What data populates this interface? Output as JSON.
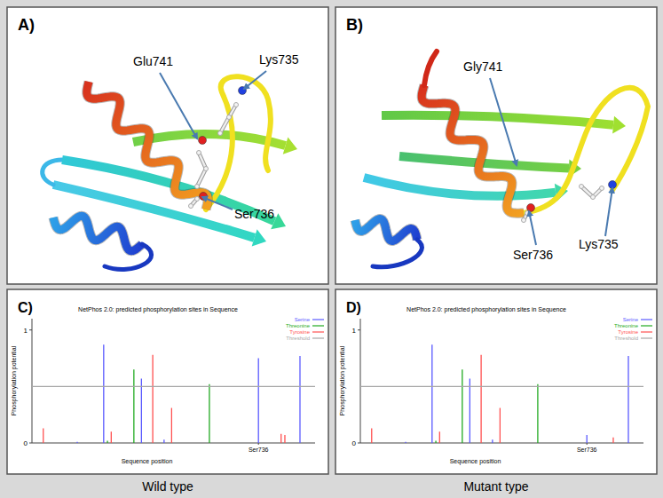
{
  "panels": [
    {
      "label": "A)",
      "residues": [
        "Glu741",
        "Lys735",
        "Ser736"
      ]
    },
    {
      "label": "B)",
      "residues": [
        "Gly741",
        "Ser736",
        "Lys735"
      ]
    }
  ],
  "chart_data": [
    {
      "type": "bar",
      "panel_label": "C)",
      "caption": "Wild type",
      "title": "NetPhos 2.0: predicted phosphorylation sites in Sequence",
      "x_label": "Sequence position",
      "y_label": "Phosphorylation potential",
      "xlim": [
        676,
        751
      ],
      "xticks": [
        {
          "value": 736,
          "label": "Ser736"
        }
      ],
      "ylim": [
        0,
        1.1
      ],
      "yticks": [
        0,
        1
      ],
      "legend": "upper right",
      "series": [
        {
          "name": "Serine",
          "color": "#5a5aff",
          "x": [
            688,
            695,
            705,
            711,
            736,
            747
          ],
          "values": [
            0.01,
            0.87,
            0.57,
            0.03,
            0.75,
            0.77
          ]
        },
        {
          "name": "Threonine",
          "color": "#22aa22",
          "x": [
            696,
            703,
            723
          ],
          "values": [
            0.02,
            0.65,
            0.52
          ]
        },
        {
          "name": "Tyrosine",
          "color": "#ff5050",
          "x": [
            679,
            697,
            708,
            713,
            742,
            743
          ],
          "values": [
            0.13,
            0.1,
            0.78,
            0.31,
            0.08,
            0.07
          ]
        },
        {
          "name": "Threshold",
          "color": "#a8a8a8",
          "type": "line",
          "x": [
            676,
            751
          ],
          "values": [
            0.5,
            0.5
          ]
        }
      ]
    },
    {
      "type": "bar",
      "panel_label": "D)",
      "caption": "Mutant type",
      "title": "NetPhos 2.0: predicted phosphorylation sites in Sequence",
      "x_label": "Sequence position",
      "y_label": "Phosphorylation potential",
      "xlim": [
        676,
        751
      ],
      "xticks": [
        {
          "value": 736,
          "label": "Ser736"
        }
      ],
      "ylim": [
        0,
        1.1
      ],
      "yticks": [
        0,
        1
      ],
      "legend": "upper right",
      "series": [
        {
          "name": "Serine",
          "color": "#5a5aff",
          "x": [
            688,
            695,
            705,
            711,
            736,
            747
          ],
          "values": [
            0.01,
            0.87,
            0.57,
            0.03,
            0.07,
            0.77
          ]
        },
        {
          "name": "Threonine",
          "color": "#22aa22",
          "x": [
            696,
            703,
            723
          ],
          "values": [
            0.02,
            0.65,
            0.52
          ]
        },
        {
          "name": "Tyrosine",
          "color": "#ff5050",
          "x": [
            679,
            697,
            708,
            713,
            743
          ],
          "values": [
            0.13,
            0.1,
            0.78,
            0.31,
            0.05
          ]
        },
        {
          "name": "Threshold",
          "color": "#a8a8a8",
          "type": "line",
          "x": [
            676,
            751
          ],
          "values": [
            0.5,
            0.5
          ]
        }
      ]
    }
  ]
}
